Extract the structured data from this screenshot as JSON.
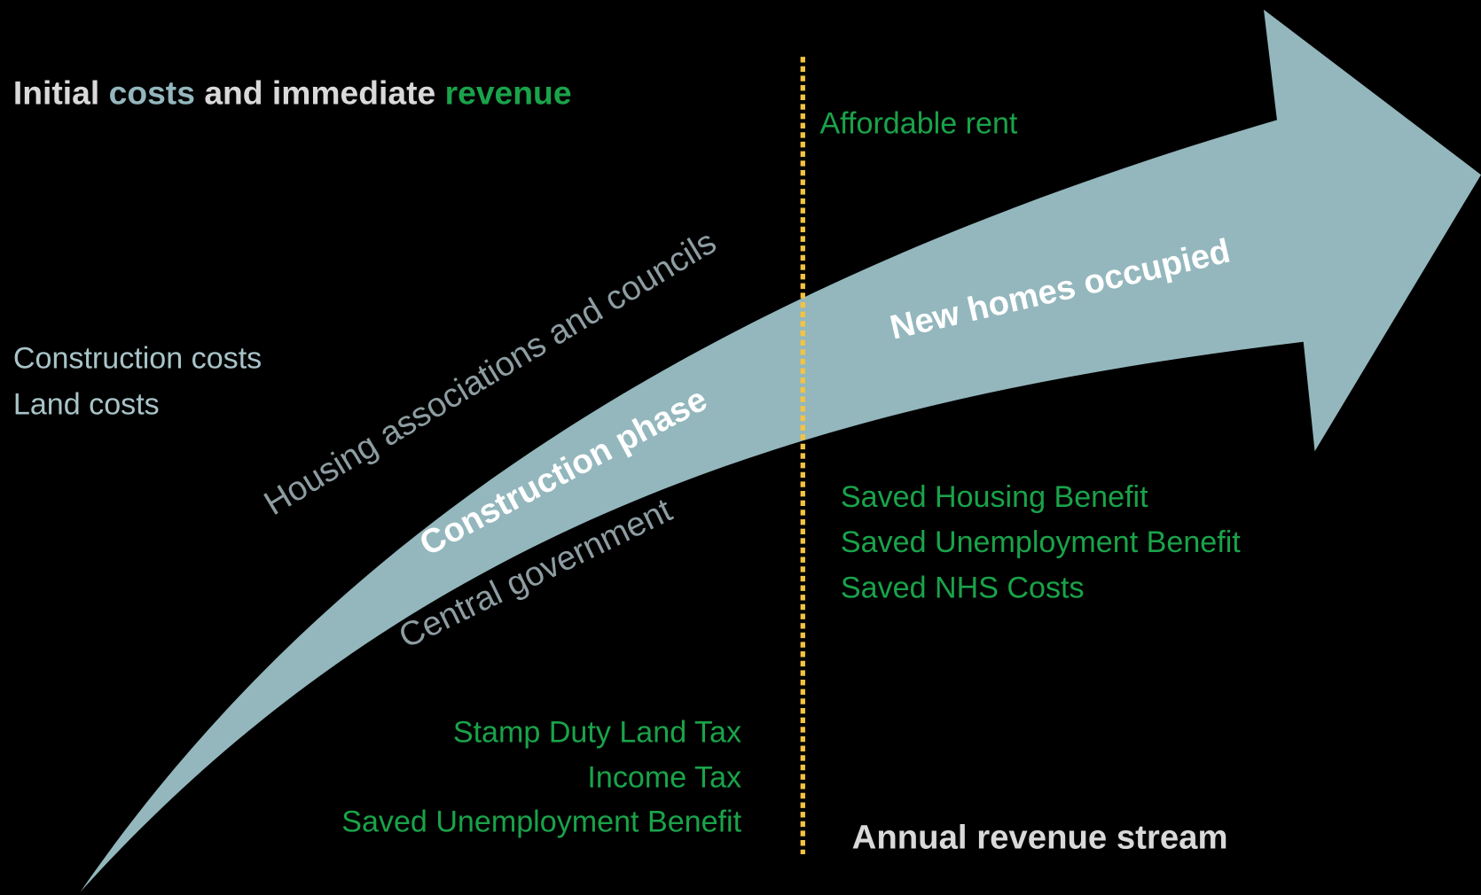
{
  "header": {
    "title_parts": [
      "Initial",
      "costs",
      "and immediate",
      "revenue"
    ]
  },
  "arrow": {
    "lower_label": "Construction phase",
    "upper_label": "New homes occupied"
  },
  "curve_labels": {
    "above": "Housing associations and councils",
    "below": "Central government"
  },
  "costs": [
    "Construction costs",
    "Land costs"
  ],
  "immediate_revenue": [
    "Stamp Duty Land Tax",
    "Income Tax",
    "Saved Unemployment Benefit"
  ],
  "annual": {
    "top": "Affordable rent",
    "items": [
      "Saved Housing Benefit",
      "Saved Unemployment Benefit",
      "Saved NHS Costs"
    ],
    "footer": "Annual revenue stream"
  }
}
